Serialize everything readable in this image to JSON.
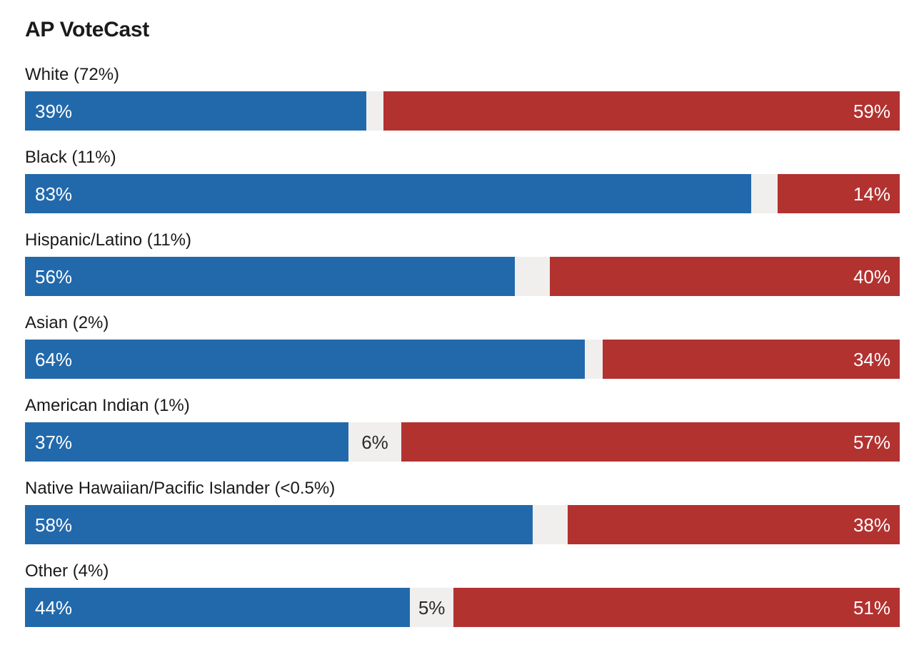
{
  "title": "AP VoteCast",
  "colors": {
    "left_bar": "#2269ac",
    "right_bar": "#b23230",
    "gap_bar": "#f0efed",
    "label_text": "#1a1a1a",
    "bar_value_text": "#ffffff",
    "gap_value_text": "#2b2b2b"
  },
  "chart_data": {
    "type": "bar",
    "variant": "horizontal-stacked-divergent",
    "title": "AP VoteCast",
    "unit": "%",
    "xlim": [
      0,
      100
    ],
    "grid": false,
    "legend": "none",
    "series": [
      {
        "name": "blue-left-segment",
        "color": "#2269ac"
      },
      {
        "name": "gray-middle-segment",
        "color": "#f0efed"
      },
      {
        "name": "red-right-segment",
        "color": "#b23230"
      }
    ],
    "rows": [
      {
        "label": "White (72%)",
        "left_value": 39,
        "left_text": "39%",
        "gap_value": 2,
        "gap_text": "",
        "right_value": 59,
        "right_text": "59%"
      },
      {
        "label": "Black (11%)",
        "left_value": 83,
        "left_text": "83%",
        "gap_value": 3,
        "gap_text": "",
        "right_value": 14,
        "right_text": "14%"
      },
      {
        "label": "Hispanic/Latino (11%)",
        "left_value": 56,
        "left_text": "56%",
        "gap_value": 4,
        "gap_text": "",
        "right_value": 40,
        "right_text": "40%"
      },
      {
        "label": "Asian (2%)",
        "left_value": 64,
        "left_text": "64%",
        "gap_value": 2,
        "gap_text": "",
        "right_value": 34,
        "right_text": "34%"
      },
      {
        "label": "American Indian (1%)",
        "left_value": 37,
        "left_text": "37%",
        "gap_value": 6,
        "gap_text": "6%",
        "right_value": 57,
        "right_text": "57%"
      },
      {
        "label": "Native Hawaiian/Pacific Islander (<0.5%)",
        "left_value": 58,
        "left_text": "58%",
        "gap_value": 4,
        "gap_text": "",
        "right_value": 38,
        "right_text": "38%"
      },
      {
        "label": "Other (4%)",
        "left_value": 44,
        "left_text": "44%",
        "gap_value": 5,
        "gap_text": "5%",
        "right_value": 51,
        "right_text": "51%"
      }
    ]
  }
}
